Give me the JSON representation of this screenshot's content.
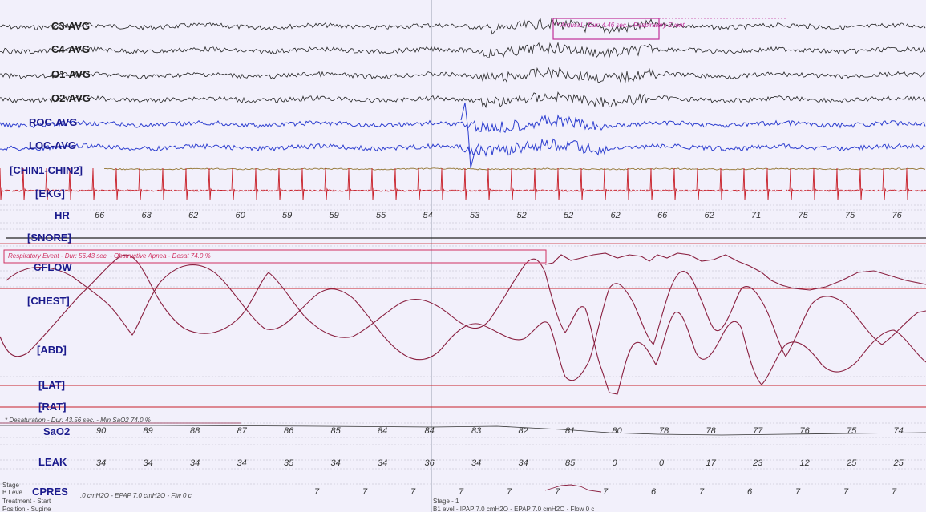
{
  "channels": {
    "c3": "C3-AVG",
    "c4": "C4-AVG",
    "o1": "O1-AVG",
    "o2": "O2-AVG",
    "roc": "ROC-AVG",
    "loc": "LOC-AVG",
    "chin": "[CHIN1-CHIN2]",
    "ekg": "[EKG]",
    "hr": "HR",
    "snore": "[SNORE]",
    "cflow": "CFLOW",
    "chest": "[CHEST]",
    "abd": "[ABD]",
    "lat": "[LAT]",
    "rat": "[RAT]",
    "sao2": "SaO2",
    "leak": "LEAK",
    "cpres": "CPRES"
  },
  "events": {
    "arousal": "* Arousal - Dur: 4.46 sec. - Respiratory Event",
    "respiratory": "Respiratory Event - Dur: 56.43 sec. - Obstructive Apnea - Desat 74.0 %",
    "desaturation": "* Desaturation - Dur: 43.56 sec. - Min SaO2 74.0 %"
  },
  "hr_values": [
    "66",
    "63",
    "62",
    "60",
    "59",
    "59",
    "55",
    "54",
    "53",
    "52",
    "52",
    "62",
    "66",
    "62",
    "71",
    "75",
    "75",
    "76"
  ],
  "sao2_values": [
    "90",
    "89",
    "88",
    "87",
    "86",
    "85",
    "84",
    "84",
    "83",
    "82",
    "81",
    "80",
    "78",
    "78",
    "77",
    "76",
    "75",
    "74"
  ],
  "leak_values": [
    "34",
    "34",
    "34",
    "34",
    "35",
    "34",
    "34",
    "36",
    "34",
    "34",
    "85",
    "0",
    "0",
    "17",
    "23",
    "12",
    "25",
    "25"
  ],
  "cpres_values": [
    "7",
    "7",
    "7",
    "7",
    "7",
    "7",
    "7",
    "6",
    "7",
    "6",
    "7",
    "7",
    "7",
    "7"
  ],
  "footer": {
    "stage_left": "Stage",
    "level_left": "B Leve",
    "cpres_info": ".0 cmH2O - EPAP 7.0 cmH2O - Flw 0 c",
    "treatment": "Treatment - Start",
    "position": "Position - Supine",
    "stage_mid": "Stage - 1",
    "setting_mid": "B1 evel - IPAP 7.0 cmH2O - EPAP 7.0 cmH2O - Flow 0 c"
  },
  "colors": {
    "background": "#f2f0fb",
    "eeg": "#222222",
    "eog": "#2d3ecf",
    "ekg": "#c8202a",
    "resp": "#8a2040",
    "label": "#1a1a8c",
    "event_box": "#c0309a"
  }
}
